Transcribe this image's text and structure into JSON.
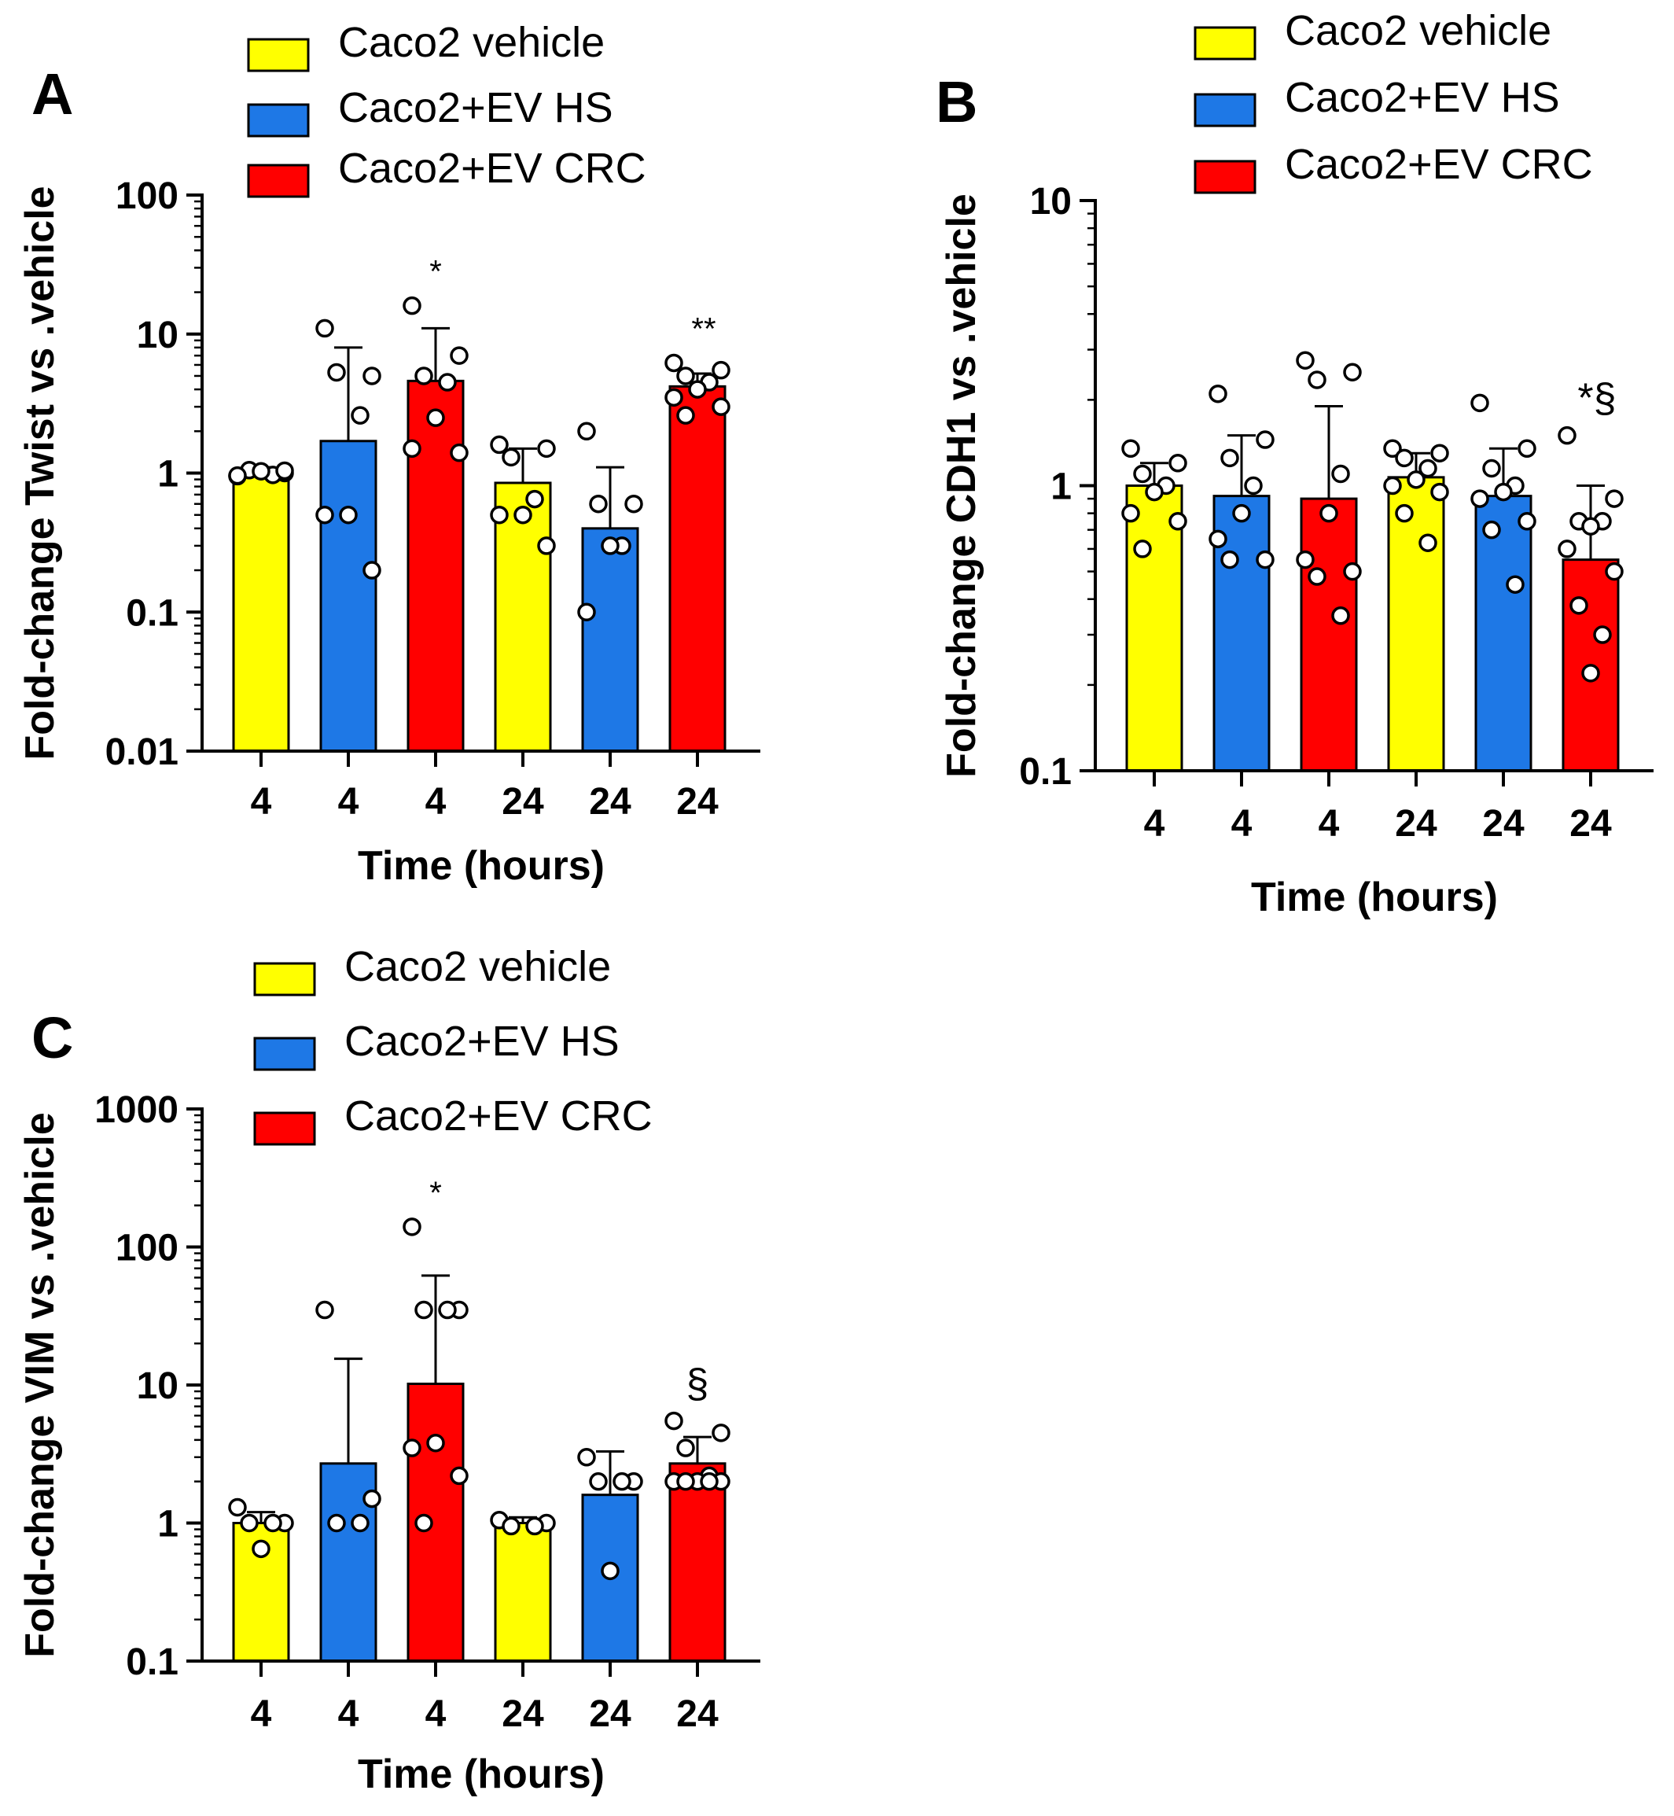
{
  "colors": {
    "vehicle": "#FFFF00",
    "hs": "#1E78E6",
    "crc": "#FF0000",
    "axis": "#000000",
    "point_fill": "#FFFFFF"
  },
  "legend": {
    "vehicle": "Caco2 vehicle",
    "hs": "Caco2+EV HS",
    "crc": "Caco2+EV CRC"
  },
  "chart_data": [
    {
      "panel": "A",
      "type": "bar",
      "scale": "log",
      "ylabel": "Fold-change Twist vs .vehicle",
      "xlabel": "Time (hours)",
      "ylim": [
        0.01,
        100
      ],
      "yticks": [
        "100",
        "10",
        "1",
        "0.1",
        "0.01"
      ],
      "categories": [
        "4",
        "4",
        "4",
        "24",
        "24",
        "24"
      ],
      "series_keys": [
        "vehicle",
        "hs",
        "crc",
        "vehicle",
        "hs",
        "crc"
      ],
      "values": [
        1.0,
        1.7,
        4.6,
        0.85,
        0.4,
        4.2
      ],
      "errors_upper": [
        1.1,
        8.0,
        11.0,
        1.5,
        1.1,
        5.2
      ],
      "points": [
        [
          0.95,
          1.0,
          1.05,
          0.97,
          1.03,
          0.96,
          1.04
        ],
        [
          11,
          5,
          5.3,
          2.6,
          0.5,
          0.5,
          0.2
        ],
        [
          16,
          7,
          5,
          4.5,
          2.5,
          1.5,
          1.4
        ],
        [
          1.6,
          1.5,
          1.3,
          0.65,
          0.5,
          0.5,
          0.3
        ],
        [
          2.0,
          0.6,
          0.6,
          0.3,
          0.3,
          0.1
        ],
        [
          6.2,
          5.5,
          5.0,
          4.5,
          4.0,
          3.5,
          3.0,
          2.6
        ]
      ],
      "annotations": [
        "",
        "",
        "*",
        "",
        "",
        "**"
      ]
    },
    {
      "panel": "B",
      "type": "bar",
      "scale": "log",
      "ylabel": "Fold-change CDH1 vs .vehicle",
      "xlabel": "Time (hours)",
      "ylim": [
        0.1,
        10
      ],
      "yticks": [
        "10",
        "1",
        "0.1"
      ],
      "categories": [
        "4",
        "4",
        "4",
        "24",
        "24",
        "24"
      ],
      "series_keys": [
        "vehicle",
        "hs",
        "crc",
        "vehicle",
        "hs",
        "crc"
      ],
      "values": [
        1.0,
        0.92,
        0.9,
        1.07,
        0.92,
        0.55
      ],
      "errors_upper": [
        1.2,
        1.5,
        1.9,
        1.3,
        1.35,
        1.0
      ],
      "points": [
        [
          1.35,
          1.2,
          1.1,
          1.0,
          0.95,
          0.8,
          0.75,
          0.6
        ],
        [
          2.1,
          1.45,
          1.25,
          1.0,
          0.8,
          0.65,
          0.55,
          0.55
        ],
        [
          2.75,
          2.5,
          2.35,
          1.1,
          0.8,
          0.55,
          0.5,
          0.48,
          0.35
        ],
        [
          1.35,
          1.3,
          1.25,
          1.15,
          1.05,
          1.0,
          0.95,
          0.8,
          0.63
        ],
        [
          1.95,
          1.35,
          1.15,
          1.0,
          0.95,
          0.9,
          0.75,
          0.7,
          0.45
        ],
        [
          1.5,
          0.9,
          0.75,
          0.75,
          0.72,
          0.6,
          0.5,
          0.38,
          0.3,
          0.22
        ]
      ],
      "annotations": [
        "",
        "",
        "",
        "",
        "",
        "*§"
      ]
    },
    {
      "panel": "C",
      "type": "bar",
      "scale": "log",
      "ylabel": "Fold-change VIM vs .vehicle",
      "xlabel": "Time (hours)",
      "ylim": [
        0.1,
        1000
      ],
      "yticks": [
        "1000",
        "100",
        "10",
        "1",
        "0.1"
      ],
      "categories": [
        "4",
        "4",
        "4",
        "24",
        "24",
        "24"
      ],
      "series_keys": [
        "vehicle",
        "hs",
        "crc",
        "vehicle",
        "hs",
        "crc"
      ],
      "values": [
        1.0,
        2.7,
        10.2,
        1.0,
        1.6,
        2.7
      ],
      "errors_upper": [
        1.2,
        15.5,
        62.0,
        1.1,
        3.3,
        4.2
      ],
      "points": [
        [
          1.3,
          1.0,
          1.0,
          1.0,
          0.65
        ],
        [
          35,
          1.5,
          1.0,
          1.0
        ],
        [
          140,
          35,
          35,
          35,
          3.8,
          3.5,
          2.2,
          1.0
        ],
        [
          1.05,
          1.0,
          0.95,
          0.95
        ],
        [
          3.0,
          2.0,
          2.0,
          2.0,
          0.45
        ],
        [
          5.5,
          4.5,
          3.5,
          2.2,
          2.0,
          2.0,
          2.0,
          2.0,
          2.0
        ]
      ],
      "annotations": [
        "",
        "",
        "*",
        "",
        "",
        "§"
      ]
    }
  ]
}
